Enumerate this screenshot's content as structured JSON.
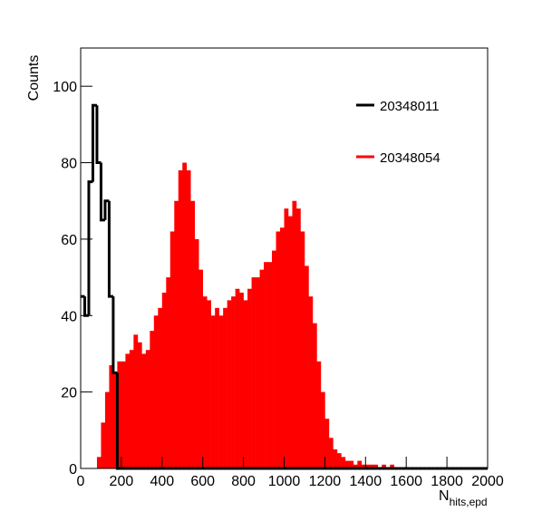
{
  "chart_data": {
    "type": "histogram",
    "ylabel": "Counts",
    "xlabel": {
      "base": "N",
      "sub": "hits,epd"
    },
    "xlim": [
      0,
      2000
    ],
    "ylim": [
      0,
      110
    ],
    "xticks": [
      0,
      200,
      400,
      600,
      800,
      1000,
      1200,
      1400,
      1600,
      1800,
      2000
    ],
    "yticks": [
      0,
      20,
      40,
      60,
      80,
      100
    ],
    "bins": [
      0,
      20,
      40,
      60,
      80,
      100,
      120,
      140,
      160,
      180,
      200,
      220,
      240,
      260,
      280,
      300,
      320,
      340,
      360,
      380,
      400,
      420,
      440,
      460,
      480,
      500,
      520,
      540,
      560,
      580,
      600,
      620,
      640,
      660,
      680,
      700,
      720,
      740,
      760,
      780,
      800,
      820,
      840,
      860,
      880,
      900,
      920,
      940,
      960,
      980,
      1000,
      1020,
      1040,
      1060,
      1080,
      1100,
      1120,
      1140,
      1160,
      1180,
      1200,
      1220,
      1240,
      1260,
      1280,
      1300,
      1320,
      1340,
      1360,
      1380,
      1400,
      1420,
      1440,
      1460,
      1480,
      1500,
      1520,
      1540,
      1560,
      1580,
      1600,
      1620,
      1640,
      1660,
      1680,
      1700,
      1720,
      1740,
      1760,
      1780,
      1800,
      1820,
      1840,
      1860,
      1880,
      1900,
      1920,
      1940,
      1960,
      1980,
      2000
    ],
    "series": [
      {
        "name": "20348011",
        "color": "#000000",
        "style": "line",
        "values": [
          45,
          40,
          75,
          95,
          80,
          65,
          70,
          45,
          25,
          0,
          0,
          0,
          0,
          0,
          0,
          0,
          0,
          0,
          0,
          0,
          0,
          0,
          0,
          0,
          0,
          0,
          0,
          0,
          0,
          0,
          0,
          0,
          0,
          0,
          0,
          0,
          0,
          0,
          0,
          0,
          0,
          0,
          0,
          0,
          0,
          0,
          0,
          0,
          0,
          0,
          0,
          0,
          0,
          0,
          0,
          0,
          0,
          0,
          0,
          0,
          0,
          0,
          0,
          0,
          0,
          0,
          0,
          0,
          0,
          0,
          0,
          0,
          0,
          0,
          0,
          0,
          0,
          0,
          0,
          0,
          0,
          0,
          0,
          0,
          0,
          0,
          0,
          0,
          0,
          0,
          0,
          0,
          0,
          0,
          0,
          0,
          0,
          0,
          0,
          0
        ]
      },
      {
        "name": "20348054",
        "color": "#ff0000",
        "style": "fill",
        "values": [
          0,
          0,
          0,
          0,
          3,
          12,
          20,
          27,
          25,
          28,
          28,
          30,
          31,
          35,
          33,
          30,
          31,
          36,
          40,
          42,
          46,
          50,
          62,
          70,
          78,
          80,
          78,
          70,
          60,
          52,
          45,
          44,
          40,
          42,
          40,
          42,
          44,
          45,
          47,
          46,
          44,
          47,
          50,
          50,
          52,
          54,
          54,
          57,
          62,
          63,
          68,
          66,
          70,
          68,
          62,
          53,
          45,
          38,
          28,
          20,
          13,
          8,
          5,
          4,
          3,
          2,
          2,
          1,
          2,
          1,
          1,
          1,
          1,
          0,
          1,
          0,
          1,
          0,
          0,
          0,
          0,
          0,
          0,
          0,
          0,
          0,
          0,
          0,
          0,
          0,
          0,
          0,
          0,
          0,
          0,
          0,
          0,
          0,
          0,
          0
        ]
      }
    ]
  }
}
